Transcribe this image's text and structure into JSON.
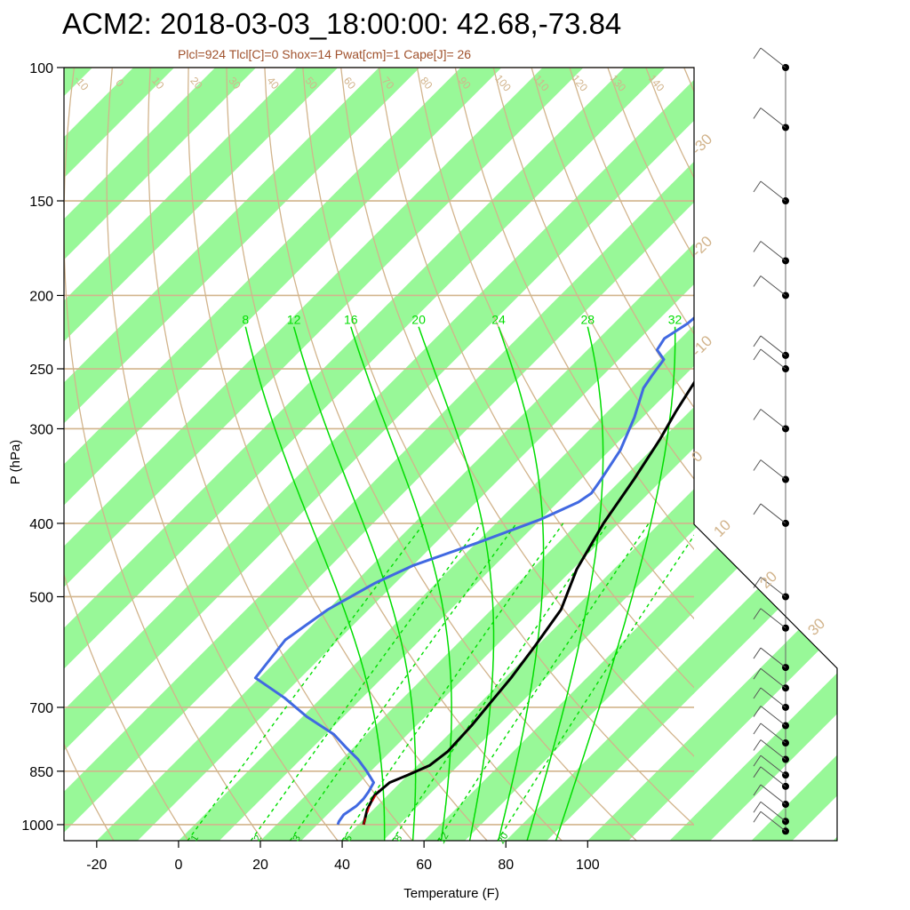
{
  "title": "ACM2: 2018-03-03_18:00:00: 42.68,-73.84",
  "subtitle": "Plcl=924 Tlcl[C]=0 Shox=14 Pwat[cm]=1 Cape[J]= 26",
  "colors": {
    "temperature": "#000000",
    "dewpoint": "#4169e1",
    "parcel": "#cc0000",
    "isobar": "#d2b48c",
    "dry_adiabat": "#d2b48c",
    "moist_adiabat": "#00dd00",
    "mixing_ratio": "#00dd00",
    "band": "#98f898"
  },
  "chart_data": {
    "type": "line",
    "subtype": "skew-t log-p sounding",
    "xlabel": "Temperature (F)",
    "ylabel": "P (hPa)",
    "xlim": [
      -28,
      126
    ],
    "ylim": [
      1050,
      100
    ],
    "y_scale": "log",
    "x_ticks": [
      -20,
      0,
      20,
      40,
      60,
      80,
      100
    ],
    "y_ticks": [
      100,
      150,
      200,
      250,
      300,
      400,
      500,
      700,
      850,
      1000
    ],
    "series": [
      {
        "points": [
          [
            41.3,
            1000
          ],
          [
            38.5,
            955
          ],
          [
            36.8,
            915
          ],
          [
            37.4,
            880
          ],
          [
            40,
            860
          ],
          [
            43,
            835
          ],
          [
            44,
            800
          ],
          [
            43.5,
            740
          ],
          [
            42.5,
            690
          ],
          [
            41.5,
            640
          ],
          [
            39.5,
            580
          ],
          [
            37,
            520
          ],
          [
            31,
            460
          ],
          [
            26.3,
            400
          ],
          [
            23,
            350
          ],
          [
            19.6,
            310
          ],
          [
            16.7,
            285
          ],
          [
            14,
            260
          ],
          [
            12.2,
            240
          ],
          [
            13,
            235
          ],
          [
            14,
            228
          ],
          [
            20,
            210
          ],
          [
            27,
            195
          ],
          [
            34,
            182
          ],
          [
            40,
            170
          ],
          [
            48,
            155
          ],
          [
            57,
            140
          ],
          [
            65,
            125
          ],
          [
            69,
            115
          ],
          [
            71,
            108
          ],
          [
            73,
            100
          ]
        ]
      },
      {
        "points": [
          [
            35,
            1000
          ],
          [
            34.5,
            990
          ],
          [
            34,
            970
          ],
          [
            35,
            945
          ],
          [
            35,
            925
          ],
          [
            34.5,
            905
          ],
          [
            33.5,
            880
          ],
          [
            29,
            850
          ],
          [
            24,
            820
          ],
          [
            18,
            790
          ],
          [
            12,
            760
          ],
          [
            1,
            720
          ],
          [
            -9,
            680
          ],
          [
            -21,
            640
          ],
          [
            -23,
            570
          ],
          [
            -20,
            520
          ],
          [
            -15,
            480
          ],
          [
            -10,
            455
          ],
          [
            0,
            425
          ],
          [
            10,
            395
          ],
          [
            15,
            375
          ],
          [
            16,
            365
          ],
          [
            15,
            350
          ],
          [
            12.5,
            320
          ],
          [
            8,
            290
          ],
          [
            3,
            265
          ],
          [
            2,
            255
          ],
          [
            1,
            243
          ],
          [
            -3,
            236
          ],
          [
            -4,
            228
          ],
          [
            -2,
            218
          ],
          [
            -1,
            205
          ],
          [
            -2,
            192
          ],
          [
            -5,
            183
          ],
          [
            -3,
            170
          ],
          [
            -1,
            160
          ],
          [
            2,
            150
          ],
          [
            6,
            140
          ],
          [
            12,
            125
          ],
          [
            18,
            112
          ],
          [
            23,
            100
          ]
        ]
      },
      {
        "points": [
          [
            41.3,
            1000
          ],
          [
            38.5,
            950
          ],
          [
            37.5,
            925
          ],
          [
            36.5,
            900
          ]
        ]
      }
    ],
    "isobars": [
      100,
      150,
      200,
      250,
      300,
      400,
      500,
      700,
      850,
      1000
    ],
    "dry_adiabat_labels": [
      -30,
      -20,
      -10,
      0,
      10,
      20,
      30,
      40,
      50,
      60,
      70,
      80,
      90,
      100,
      110,
      120,
      130,
      140,
      150,
      160
    ],
    "moist_adiabat_labels": [
      8,
      12,
      16,
      20,
      24,
      28,
      32
    ],
    "mixing_ratio_labels": [
      1,
      2,
      3,
      5,
      8,
      12,
      20
    ],
    "skew_labels": [
      -30,
      -20,
      -10,
      0,
      10,
      20,
      30
    ],
    "wind_levels": [
      100,
      120,
      150,
      180,
      200,
      240,
      250,
      300,
      350,
      400,
      500,
      550,
      620,
      660,
      700,
      740,
      780,
      820,
      860,
      890,
      940,
      990,
      1020
    ]
  }
}
